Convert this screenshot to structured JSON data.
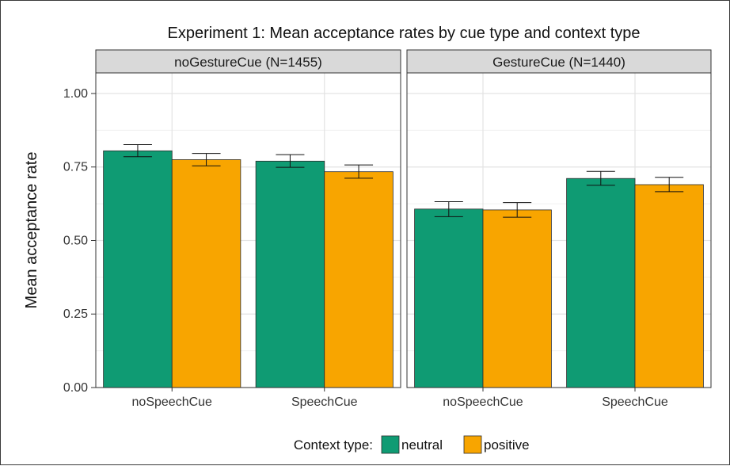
{
  "chart_data": {
    "type": "bar",
    "title": "Experiment 1: Mean acceptance rates by cue type and context type",
    "ylabel": "Mean acceptance rate",
    "xlabel": "",
    "ylim": [
      0,
      1.07
    ],
    "yticks": [
      "0.00",
      "0.25",
      "0.50",
      "0.75",
      "1.00"
    ],
    "ytick_values": [
      0,
      0.25,
      0.5,
      0.75,
      1.0
    ],
    "grid": true,
    "categories": [
      "noSpeechCue",
      "SpeechCue"
    ],
    "panels": [
      {
        "label": "noGestureCue (N=1455)",
        "series": [
          {
            "name": "neutral",
            "values": [
              0.805,
              0.77
            ],
            "error_low": [
              0.785,
              0.749
            ],
            "error_high": [
              0.826,
              0.792
            ]
          },
          {
            "name": "positive",
            "values": [
              0.775,
              0.734
            ],
            "error_low": [
              0.754,
              0.712
            ],
            "error_high": [
              0.796,
              0.757
            ]
          }
        ]
      },
      {
        "label": "GestureCue (N=1440)",
        "series": [
          {
            "name": "neutral",
            "values": [
              0.607,
              0.711
            ],
            "error_low": [
              0.581,
              0.688
            ],
            "error_high": [
              0.632,
              0.735
            ]
          },
          {
            "name": "positive",
            "values": [
              0.604,
              0.69
            ],
            "error_low": [
              0.579,
              0.666
            ],
            "error_high": [
              0.629,
              0.715
            ]
          }
        ]
      }
    ],
    "legend": {
      "title": "Context type:",
      "placement": "bottom",
      "entries": [
        "neutral",
        "positive"
      ]
    },
    "colors": {
      "neutral": "#0f9b73",
      "positive": "#f8a500"
    }
  }
}
